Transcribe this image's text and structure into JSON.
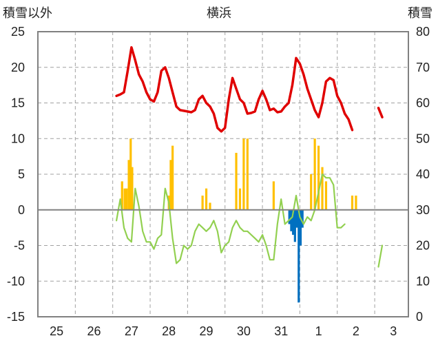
{
  "chart_data": {
    "type": "line",
    "title": "横浜",
    "ylabel_left": "積雪以外",
    "ylabel_right": "積雪",
    "ylim_left": [
      -15,
      25
    ],
    "ylim_right": [
      0,
      80
    ],
    "categories": [
      "25",
      "26",
      "27",
      "28",
      "29",
      "30",
      "31",
      "1",
      "2",
      "3"
    ],
    "yticks_left": [
      "25",
      "20",
      "15",
      "10",
      "5",
      "0",
      "-5",
      "-10",
      "-15"
    ],
    "yticks_right": [
      "80",
      "70",
      "60",
      "50",
      "40",
      "30",
      "20",
      "10",
      "0"
    ],
    "grid": true,
    "colors": {
      "max_temp": "#e00000",
      "min_temp": "#92d050",
      "precip": "#ffc000",
      "snow": "#0070c0",
      "frame": "#808080"
    },
    "series": [
      {
        "kind": "line",
        "color": "#e00000",
        "axis": "left",
        "x": [
          26.6,
          26.7,
          26.8,
          26.9,
          27.0,
          27.1,
          27.2,
          27.3,
          27.4,
          27.5,
          27.6,
          27.7,
          27.8,
          27.9,
          28.0,
          28.1,
          28.2,
          28.3,
          28.4,
          28.5,
          28.6,
          28.7,
          28.8,
          28.9,
          29.0,
          29.1,
          29.2,
          29.3,
          29.4,
          29.5,
          29.6,
          29.7,
          29.8,
          29.9,
          30.0,
          30.1,
          30.2,
          30.3,
          30.4,
          30.5,
          30.6,
          30.7,
          30.8,
          30.9,
          31.0,
          31.1,
          31.2,
          31.3,
          31.4,
          31.5,
          31.6,
          31.7,
          31.8,
          31.9,
          32.0,
          32.1,
          32.2,
          32.3,
          32.4,
          32.5,
          32.6,
          32.7,
          32.8,
          32.9,
          33.0,
          33.1,
          33.2,
          33.3,
          33.4,
          33.5,
          33.6,
          33.7
        ],
        "y": [
          16,
          16.2,
          16.5,
          19.5,
          22.8,
          21,
          19,
          18,
          16.5,
          15.5,
          15.2,
          16.5,
          19.5,
          20,
          18.5,
          16.5,
          14.5,
          14,
          13.9,
          13.8,
          13.7,
          14,
          15.5,
          16,
          15,
          14.5,
          13.5,
          11.5,
          11,
          11.5,
          15.5,
          18.5,
          17,
          15.5,
          15,
          13.5,
          13.6,
          13.8,
          15.5,
          16.7,
          15.5,
          14,
          14.2,
          13.7,
          13.8,
          14.5,
          15,
          17.5,
          21.3,
          20.5,
          19,
          17,
          15.5,
          14,
          13,
          15,
          18,
          18.5,
          18.2,
          16,
          15,
          13.5,
          12.7,
          11.2,
          null,
          null,
          null,
          null,
          null,
          null,
          14.3,
          13
        ]
      },
      {
        "kind": "line",
        "color": "#92d050",
        "axis": "left",
        "x": [
          26.6,
          26.7,
          26.8,
          26.9,
          27.0,
          27.1,
          27.2,
          27.3,
          27.4,
          27.5,
          27.6,
          27.7,
          27.8,
          27.9,
          28.0,
          28.1,
          28.2,
          28.3,
          28.4,
          28.5,
          28.6,
          28.7,
          28.8,
          28.9,
          29.0,
          29.1,
          29.2,
          29.3,
          29.4,
          29.5,
          29.6,
          29.7,
          29.8,
          29.9,
          30.0,
          30.1,
          30.2,
          30.3,
          30.4,
          30.5,
          30.6,
          30.7,
          30.8,
          30.9,
          31.0,
          31.1,
          31.2,
          31.3,
          31.4,
          31.5,
          31.6,
          31.7,
          31.8,
          31.9,
          32.0,
          32.1,
          32.2,
          32.3,
          32.4,
          32.5,
          32.6,
          32.7,
          32.8,
          32.9,
          33.0,
          33.1,
          33.2,
          33.3,
          33.4,
          33.5,
          33.6,
          33.7
        ],
        "y": [
          -1.5,
          1.5,
          -2.5,
          -4,
          -4.5,
          3,
          0.5,
          -3,
          -4.5,
          -4.5,
          -5.5,
          -4,
          -3.5,
          3,
          1,
          -4,
          -7.5,
          -7,
          -5,
          -5.5,
          -5,
          -3,
          -2,
          -2.5,
          -3,
          -2.5,
          -1.5,
          -3,
          -6,
          -5,
          -4.5,
          -2.5,
          -1.5,
          -2.5,
          -3,
          -3,
          -3.5,
          -4,
          -4.5,
          -3.5,
          -5,
          -7,
          -7,
          -2,
          1.5,
          -2,
          -1.5,
          -1,
          2,
          -1,
          -2,
          -1,
          -1.5,
          0,
          2.5,
          5,
          4.5,
          4.5,
          3.5,
          -2.5,
          -2.5,
          -2,
          null,
          null,
          null,
          null,
          null,
          null,
          null,
          null,
          -8,
          -5
        ]
      },
      {
        "kind": "bar",
        "color": "#ffc000",
        "axis": "left",
        "x": [
          26.75,
          26.82,
          26.87,
          26.93,
          26.98,
          27.02,
          28.0,
          28.05,
          28.1,
          28.9,
          29.0,
          29.1,
          29.8,
          29.9,
          30.0,
          30.1,
          30.8,
          31.8,
          31.9,
          32.0,
          32.1,
          32.2,
          32.9,
          33.0
        ],
        "y": [
          4,
          3,
          3,
          7,
          10,
          6,
          2,
          7,
          9,
          2,
          3,
          1,
          8,
          3,
          10,
          10,
          4,
          5,
          10,
          9,
          6,
          4,
          2,
          2
        ]
      },
      {
        "kind": "bar",
        "color": "#0070c0",
        "axis": "right",
        "x": [
          31.22,
          31.27,
          31.32,
          31.37,
          31.42,
          31.47,
          31.52,
          31.57
        ],
        "y": [
          26,
          24,
          23,
          21,
          25,
          4,
          20,
          25
        ]
      }
    ]
  }
}
